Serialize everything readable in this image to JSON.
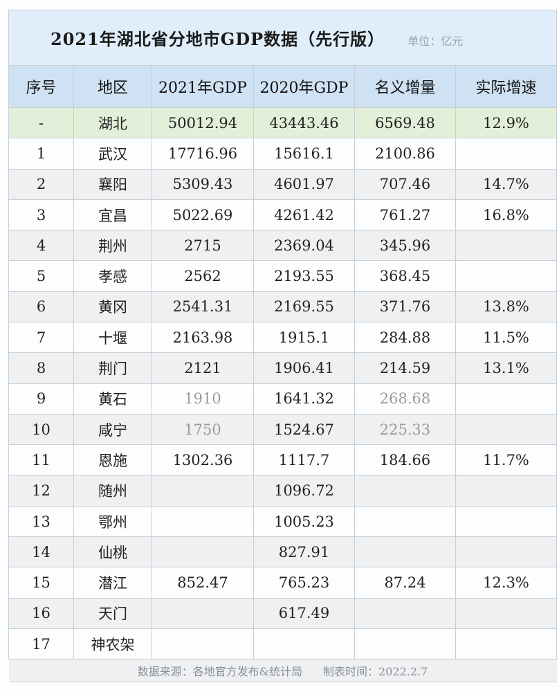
{
  "title": "2021年湖北省分地市GDP数据（先行版）",
  "unit": "单位：亿元",
  "headers": [
    "序号",
    "地区",
    "2021年GDP",
    "2020年GDP",
    "名义增量",
    "实际增速"
  ],
  "rows": [
    {
      "no": "-",
      "region": "湖北",
      "gdp2021": "50012.94",
      "gdp2020": "43443.46",
      "increase": "6569.48",
      "growth": "12.9%"
    },
    {
      "no": "1",
      "region": "武汉",
      "gdp2021": "17716.96",
      "gdp2020": "15616.1",
      "increase": "2100.86",
      "growth": ""
    },
    {
      "no": "2",
      "region": "襄阳",
      "gdp2021": "5309.43",
      "gdp2020": "4601.97",
      "increase": "707.46",
      "growth": "14.7%"
    },
    {
      "no": "3",
      "region": "宜昌",
      "gdp2021": "5022.69",
      "gdp2020": "4261.42",
      "increase": "761.27",
      "growth": "16.8%"
    },
    {
      "no": "4",
      "region": "荆州",
      "gdp2021": "2715",
      "gdp2020": "2369.04",
      "increase": "345.96",
      "growth": ""
    },
    {
      "no": "5",
      "region": "孝感",
      "gdp2021": "2562",
      "gdp2020": "2193.55",
      "increase": "368.45",
      "growth": ""
    },
    {
      "no": "6",
      "region": "黄冈",
      "gdp2021": "2541.31",
      "gdp2020": "2169.55",
      "increase": "371.76",
      "growth": "13.8%"
    },
    {
      "no": "7",
      "region": "十堰",
      "gdp2021": "2163.98",
      "gdp2020": "1915.1",
      "increase": "284.88",
      "growth": "11.5%"
    },
    {
      "no": "8",
      "region": "荆门",
      "gdp2021": "2121",
      "gdp2020": "1906.41",
      "increase": "214.59",
      "growth": "13.1%"
    },
    {
      "no": "9",
      "region": "黄石",
      "gdp2021": "1910",
      "gdp2020": "1641.32",
      "increase": "268.68",
      "growth": ""
    },
    {
      "no": "10",
      "region": "咸宁",
      "gdp2021": "1750",
      "gdp2020": "1524.67",
      "increase": "225.33",
      "growth": ""
    },
    {
      "no": "11",
      "region": "恩施",
      "gdp2021": "1302.36",
      "gdp2020": "1117.7",
      "increase": "184.66",
      "growth": "11.7%"
    },
    {
      "no": "12",
      "region": "随州",
      "gdp2021": "",
      "gdp2020": "1096.72",
      "increase": "",
      "growth": ""
    },
    {
      "no": "13",
      "region": "鄂州",
      "gdp2021": "",
      "gdp2020": "1005.23",
      "increase": "",
      "growth": ""
    },
    {
      "no": "14",
      "region": "仙桃",
      "gdp2021": "",
      "gdp2020": "827.91",
      "increase": "",
      "growth": ""
    },
    {
      "no": "15",
      "region": "潜江",
      "gdp2021": "852.47",
      "gdp2020": "765.23",
      "increase": "87.24",
      "growth": "12.3%"
    },
    {
      "no": "16",
      "region": "天门",
      "gdp2021": "",
      "gdp2020": "617.49",
      "increase": "",
      "growth": ""
    },
    {
      "no": "17",
      "region": "神农架",
      "gdp2021": "",
      "gdp2020": "",
      "increase": "",
      "growth": ""
    }
  ],
  "footer": {
    "source": "数据来源：各地官方发布&统计局",
    "date": "制表时间：2022.2.7"
  }
}
